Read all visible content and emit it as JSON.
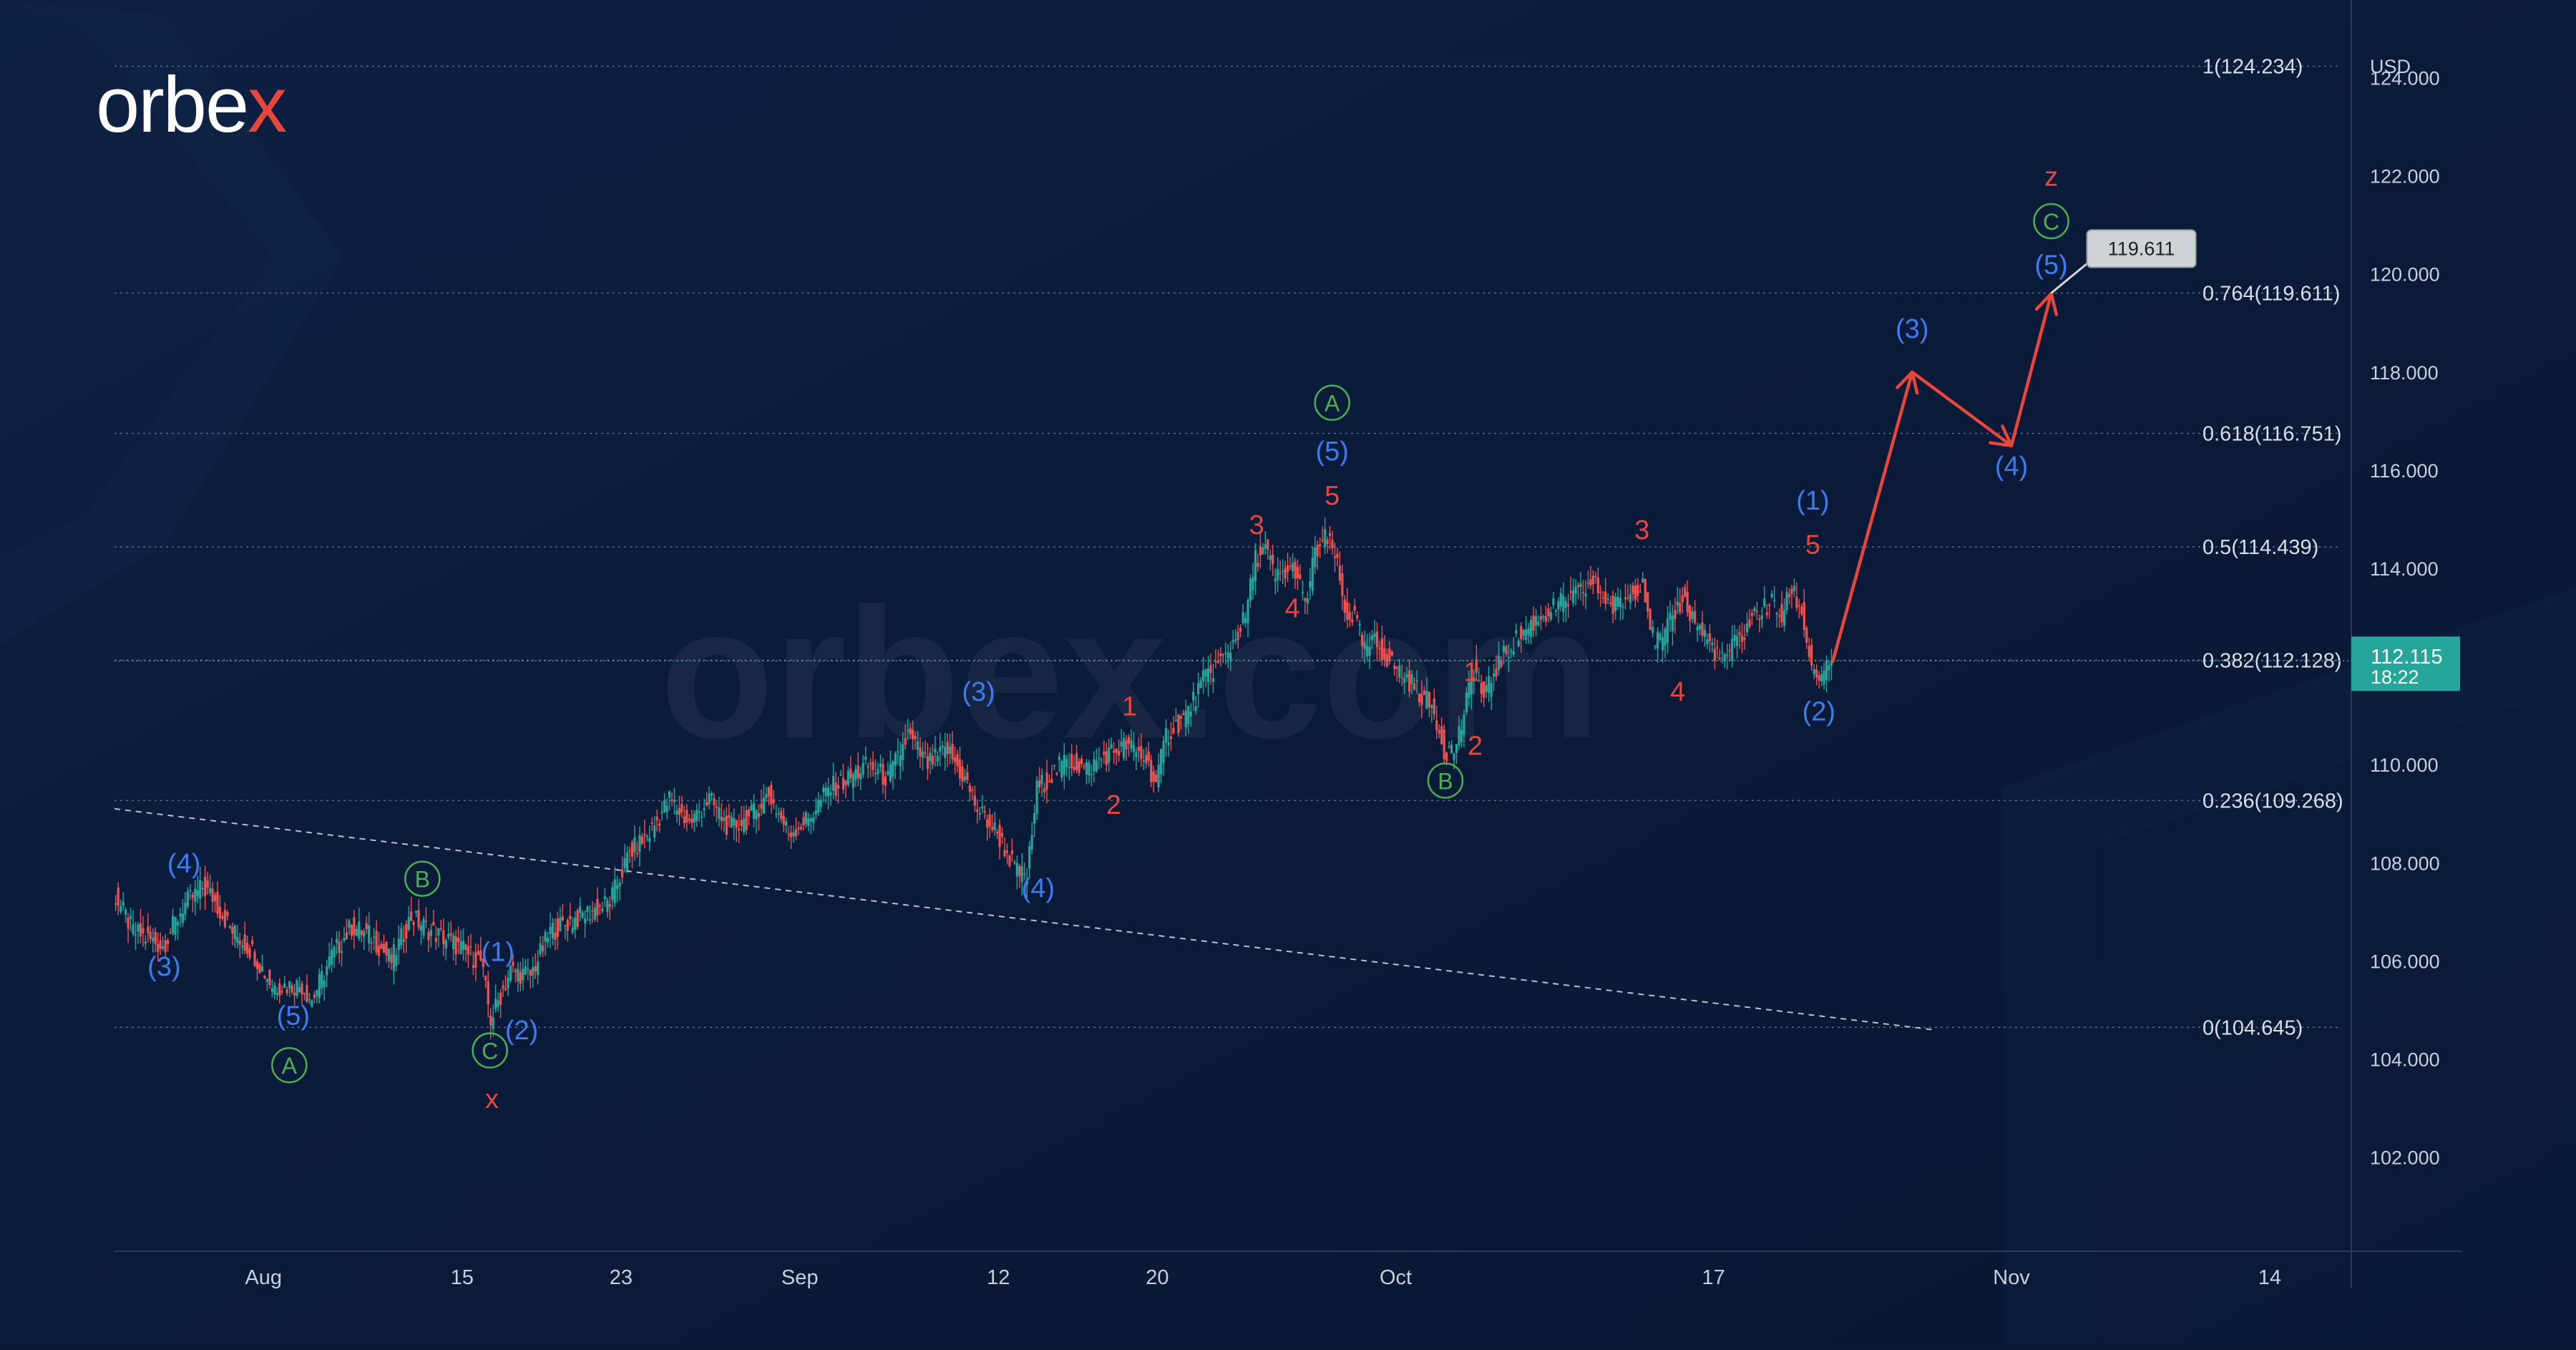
{
  "brand": {
    "logo_text": "orbex",
    "watermark": "orbex.com"
  },
  "colors": {
    "background": "#0a1a33",
    "accent_red": "#e8453c",
    "wave_blue": "#3d7bf0",
    "wave_green": "#4caf50",
    "price_badge": "#26a69a",
    "candle_up": "#26a69a",
    "candle_down": "#ef5350"
  },
  "chart_data": {
    "type": "line",
    "instrument_currency": "USD",
    "y_axis": {
      "unit": "USD",
      "range": [
        100.2,
        125.0
      ],
      "ticks": [
        "102.000",
        "104.000",
        "106.000",
        "108.000",
        "110.000",
        "112.000",
        "114.000",
        "116.000",
        "118.000",
        "120.000",
        "122.000",
        "124.000"
      ]
    },
    "x_axis": {
      "ticks": [
        {
          "label": "Aug",
          "day": 5
        },
        {
          "label": "15",
          "day": 15
        },
        {
          "label": "23",
          "day": 23
        },
        {
          "label": "Sep",
          "day": 32
        },
        {
          "label": "12",
          "day": 42
        },
        {
          "label": "20",
          "day": 50
        },
        {
          "label": "Oct",
          "day": 62
        },
        {
          "label": "17",
          "day": 78
        },
        {
          "label": "Nov",
          "day": 93
        },
        {
          "label": "14",
          "day": 106
        }
      ]
    },
    "price_series": [
      [
        -2.5,
        107.4
      ],
      [
        -1.5,
        106.6
      ],
      [
        0,
        106.3
      ],
      [
        1,
        107.1
      ],
      [
        2,
        107.5
      ],
      [
        2.5,
        107.3
      ],
      [
        3.5,
        106.6
      ],
      [
        4.5,
        106.2
      ],
      [
        5.5,
        105.5
      ],
      [
        7,
        105.5
      ],
      [
        7.5,
        105.2
      ],
      [
        8.5,
        106.1
      ],
      [
        9.5,
        106.7
      ],
      [
        10.5,
        106.5
      ],
      [
        11.5,
        106.0
      ],
      [
        12.5,
        106.9
      ],
      [
        13.5,
        106.6
      ],
      [
        14.5,
        106.4
      ],
      [
        15.5,
        106.1
      ],
      [
        16,
        106.0
      ],
      [
        16.5,
        104.8
      ],
      [
        17.5,
        105.8
      ],
      [
        18.5,
        105.7
      ],
      [
        19.5,
        106.6
      ],
      [
        21.5,
        107.0
      ],
      [
        22.5,
        107.2
      ],
      [
        23.5,
        108.2
      ],
      [
        24.5,
        108.6
      ],
      [
        25.5,
        109.3
      ],
      [
        26.5,
        108.8
      ],
      [
        27.5,
        109.3
      ],
      [
        28.5,
        108.7
      ],
      [
        29.5,
        108.9
      ],
      [
        30.5,
        109.4
      ],
      [
        31.5,
        108.6
      ],
      [
        32.5,
        108.9
      ],
      [
        33.5,
        109.5
      ],
      [
        34.5,
        109.7
      ],
      [
        35.5,
        110.0
      ],
      [
        36.5,
        109.7
      ],
      [
        37.5,
        110.6
      ],
      [
        38.5,
        110.0
      ],
      [
        39.5,
        110.3
      ],
      [
        40.5,
        109.6
      ],
      [
        41,
        109.1
      ],
      [
        42,
        108.6
      ],
      [
        43,
        107.8
      ],
      [
        43.5,
        107.7
      ],
      [
        44,
        109.5
      ],
      [
        44.5,
        109.7
      ],
      [
        45.5,
        110.1
      ],
      [
        46.5,
        109.9
      ],
      [
        47.5,
        110.2
      ],
      [
        48.5,
        110.4
      ],
      [
        49.5,
        110.1
      ],
      [
        50,
        109.6
      ],
      [
        50.5,
        110.6
      ],
      [
        51.5,
        111.0
      ],
      [
        52.5,
        111.8
      ],
      [
        53.5,
        112.2
      ],
      [
        54.5,
        113.0
      ],
      [
        55,
        114.2
      ],
      [
        55.5,
        114.4
      ],
      [
        56,
        113.8
      ],
      [
        57,
        114.0
      ],
      [
        57.5,
        113.2
      ],
      [
        58,
        114.3
      ],
      [
        58.5,
        114.6
      ],
      [
        59,
        114.3
      ],
      [
        59.5,
        113.1
      ],
      [
        60,
        113.0
      ],
      [
        60.5,
        112.3
      ],
      [
        61,
        112.5
      ],
      [
        62,
        112.0
      ],
      [
        63,
        111.6
      ],
      [
        64,
        111.1
      ],
      [
        64.5,
        110.3
      ],
      [
        65,
        110.3
      ],
      [
        65.5,
        111.0
      ],
      [
        66,
        112.0
      ],
      [
        66.5,
        111.3
      ],
      [
        67,
        111.9
      ],
      [
        68,
        112.5
      ],
      [
        69,
        112.9
      ],
      [
        70,
        113.2
      ],
      [
        71,
        113.4
      ],
      [
        72,
        113.7
      ],
      [
        73,
        113.2
      ],
      [
        74,
        113.5
      ],
      [
        74.5,
        113.8
      ],
      [
        75,
        112.6
      ],
      [
        75.5,
        112.5
      ],
      [
        76,
        113.0
      ],
      [
        76.5,
        113.4
      ],
      [
        77,
        113.0
      ],
      [
        78,
        112.4
      ],
      [
        78.5,
        112.1
      ],
      [
        79,
        112.4
      ],
      [
        79.5,
        112.6
      ],
      [
        80,
        113.0
      ],
      [
        81,
        113.3
      ],
      [
        81.5,
        113.0
      ],
      [
        82,
        113.6
      ],
      [
        82.5,
        113.1
      ],
      [
        83,
        112.0
      ],
      [
        83.5,
        111.7
      ],
      [
        84,
        112.1
      ]
    ],
    "current_price": {
      "label": "112.115",
      "countdown": "18:22",
      "value": 112.115
    },
    "fib_levels": [
      {
        "label": "1(124.234)",
        "value": 124.234
      },
      {
        "label": "0.764(119.611)",
        "value": 119.611
      },
      {
        "label": "0.618(116.751)",
        "value": 116.751
      },
      {
        "label": "0.5(114.439)",
        "value": 114.439
      },
      {
        "label": "0.382(112.128)",
        "value": 112.128
      },
      {
        "label": "0.236(109.268)",
        "value": 109.268
      },
      {
        "label": "0(104.645)",
        "value": 104.645
      }
    ],
    "target_tag": {
      "label": "119.611",
      "value": 119.611
    },
    "trendline": [
      [
        -2.5,
        109.1
      ],
      [
        89,
        104.6
      ]
    ],
    "projection": [
      [
        84,
        112.1
      ],
      [
        88,
        118.0
      ],
      [
        93,
        116.5
      ],
      [
        95,
        119.6
      ]
    ],
    "wave_labels": [
      {
        "text": "(4)",
        "x": 1.0,
        "y": 107.8,
        "color": "blue"
      },
      {
        "text": "(3)",
        "x": 0.0,
        "y": 105.7,
        "color": "blue"
      },
      {
        "text": "(5)",
        "x": 6.5,
        "y": 104.7,
        "color": "blue"
      },
      {
        "text": "A",
        "x": 6.3,
        "y": 103.7,
        "color": "green",
        "circle": true
      },
      {
        "text": "B",
        "x": 13.0,
        "y": 107.5,
        "color": "green",
        "circle": true
      },
      {
        "text": "(1)",
        "x": 16.8,
        "y": 106.0,
        "color": "blue"
      },
      {
        "text": "(2)",
        "x": 18.0,
        "y": 104.4,
        "color": "blue"
      },
      {
        "text": "C",
        "x": 16.4,
        "y": 104.0,
        "color": "green",
        "circle": true
      },
      {
        "text": "x",
        "x": 16.5,
        "y": 103.0,
        "color": "red"
      },
      {
        "text": "(3)",
        "x": 41.0,
        "y": 111.3,
        "color": "blue"
      },
      {
        "text": "(4)",
        "x": 44.0,
        "y": 107.3,
        "color": "blue"
      },
      {
        "text": "1",
        "x": 48.6,
        "y": 111.0,
        "color": "red"
      },
      {
        "text": "2",
        "x": 47.8,
        "y": 109.0,
        "color": "red"
      },
      {
        "text": "3",
        "x": 55.0,
        "y": 114.7,
        "color": "red"
      },
      {
        "text": "4",
        "x": 56.8,
        "y": 113.0,
        "color": "red"
      },
      {
        "text": "5",
        "x": 58.8,
        "y": 115.3,
        "color": "red"
      },
      {
        "text": "(5)",
        "x": 58.8,
        "y": 116.2,
        "color": "blue"
      },
      {
        "text": "A",
        "x": 58.8,
        "y": 117.2,
        "color": "green",
        "circle": true
      },
      {
        "text": "1",
        "x": 65.8,
        "y": 111.7,
        "color": "red"
      },
      {
        "text": "2",
        "x": 66.0,
        "y": 110.2,
        "color": "red"
      },
      {
        "text": "B",
        "x": 64.5,
        "y": 109.5,
        "color": "green",
        "circle": true
      },
      {
        "text": "3",
        "x": 74.4,
        "y": 114.6,
        "color": "red"
      },
      {
        "text": "4",
        "x": 76.2,
        "y": 111.3,
        "color": "red"
      },
      {
        "text": "5",
        "x": 83.0,
        "y": 114.3,
        "color": "red"
      },
      {
        "text": "(1)",
        "x": 83.0,
        "y": 115.2,
        "color": "blue"
      },
      {
        "text": "(2)",
        "x": 83.3,
        "y": 110.9,
        "color": "blue"
      },
      {
        "text": "(3)",
        "x": 88.0,
        "y": 118.7,
        "color": "blue"
      },
      {
        "text": "(4)",
        "x": 93.0,
        "y": 115.9,
        "color": "blue"
      },
      {
        "text": "(5)",
        "x": 95.0,
        "y": 120.0,
        "color": "blue"
      },
      {
        "text": "C",
        "x": 95.0,
        "y": 120.9,
        "color": "green",
        "circle": true
      },
      {
        "text": "z",
        "x": 95.0,
        "y": 121.8,
        "color": "red"
      }
    ]
  }
}
